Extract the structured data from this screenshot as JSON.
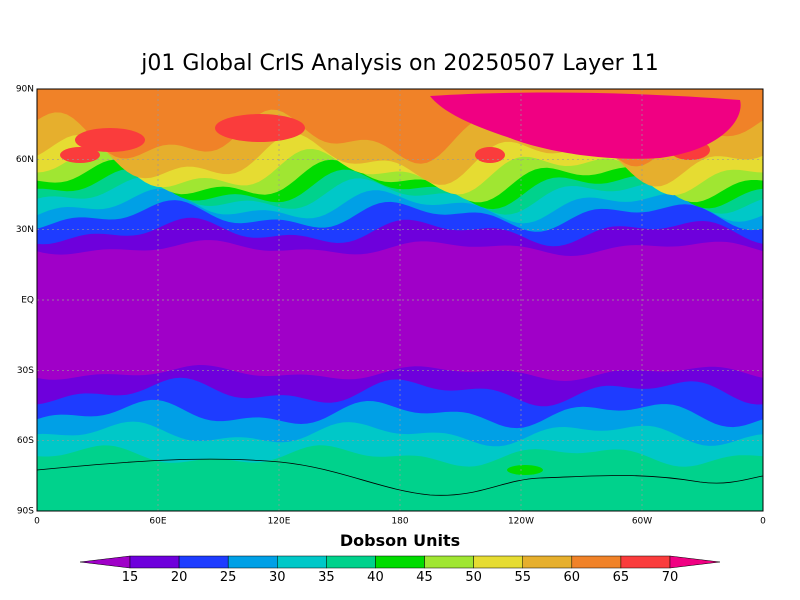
{
  "title": "j01 Global CrIS Analysis on 20250507 Layer 11",
  "lat_labels": [
    "90N",
    "60N",
    "30N",
    "EQ",
    "30S",
    "60S",
    "90S"
  ],
  "lon_labels": [
    "0",
    "60E",
    "120E",
    "180",
    "120W",
    "60W",
    "0"
  ],
  "colorbar": {
    "label": "Dobson Units",
    "levels": [
      15,
      20,
      25,
      30,
      35,
      40,
      45,
      50,
      55,
      60,
      65,
      70
    ],
    "colors": [
      "#a000c8",
      "#6e00dc",
      "#1e3cff",
      "#00a0e6",
      "#00c8c8",
      "#00d28c",
      "#00dc00",
      "#a0e632",
      "#e6dc32",
      "#e6af2d",
      "#f08228",
      "#fa3c3c",
      "#f00082"
    ]
  }
}
